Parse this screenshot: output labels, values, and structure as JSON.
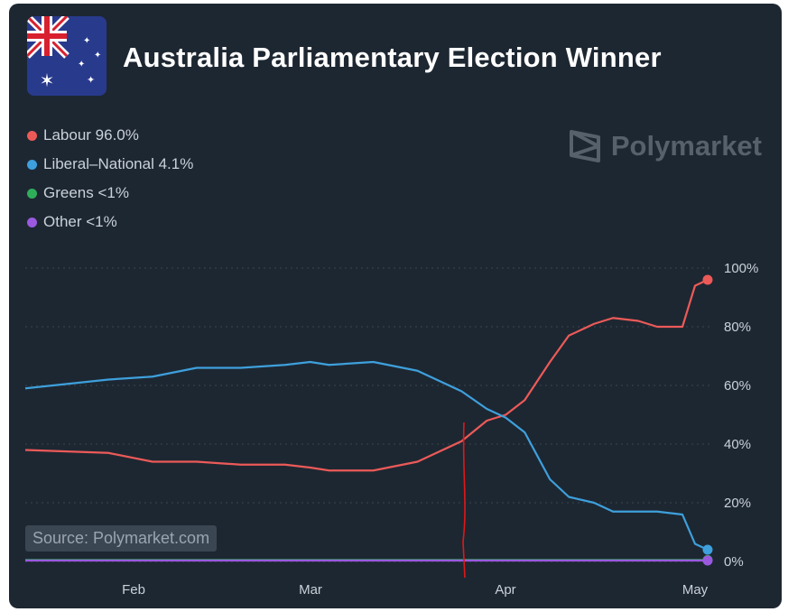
{
  "title": "Australia Parliamentary Election Winner",
  "brand": "Polymarket",
  "source": "Source: Polymarket.com",
  "legend": [
    {
      "label": "Labour 96.0%",
      "color": "#ec5a58"
    },
    {
      "label": "Liberal–National 4.1%",
      "color": "#3ea0dc"
    },
    {
      "label": "Greens <1%",
      "color": "#2fae5a"
    },
    {
      "label": "Other <1%",
      "color": "#9b59e0"
    }
  ],
  "chart_data": {
    "type": "line",
    "title": "Australia Parliamentary Election Winner",
    "x_ticks": [
      "Feb",
      "Mar",
      "Apr",
      "May"
    ],
    "y_ticks": [
      "100%",
      "80%",
      "60%",
      "40%",
      "20%",
      "0%"
    ],
    "ylim": [
      0,
      100
    ],
    "grid": true,
    "legend_position": "top-left",
    "x": [
      "Jan 21",
      "Jan 28",
      "Feb 4",
      "Feb 11",
      "Feb 18",
      "Feb 25",
      "Mar 1",
      "Mar 4",
      "Mar 11",
      "Mar 18",
      "Mar 25",
      "Mar 29",
      "Apr 1",
      "Apr 4",
      "Apr 8",
      "Apr 11",
      "Apr 15",
      "Apr 18",
      "Apr 22",
      "Apr 25",
      "Apr 29",
      "May 1",
      "May 3"
    ],
    "series": [
      {
        "name": "Labour",
        "color": "#ec5a58",
        "values": [
          38,
          37,
          34,
          34,
          33,
          33,
          32,
          31,
          31,
          34,
          41,
          48,
          50,
          55,
          68,
          77,
          81,
          83,
          82,
          80,
          80,
          94,
          96
        ]
      },
      {
        "name": "Liberal–National",
        "color": "#3ea0dc",
        "values": [
          59,
          62,
          63,
          66,
          66,
          67,
          68,
          67,
          68,
          65,
          58,
          52,
          49,
          44,
          28,
          22,
          20,
          17,
          17,
          17,
          16,
          6,
          4
        ]
      },
      {
        "name": "Greens",
        "color": "#2fae5a",
        "values": [
          0.5,
          0.5,
          0.5,
          0.5,
          0.5,
          0.5,
          0.5,
          0.5,
          0.5,
          0.5,
          0.5,
          0.5,
          0.5,
          0.5,
          0.5,
          0.5,
          0.5,
          0.5,
          0.5,
          0.5,
          0.5,
          0.5,
          0.5
        ]
      },
      {
        "name": "Other",
        "color": "#9b59e0",
        "values": [
          0.3,
          0.3,
          0.3,
          0.3,
          0.3,
          0.3,
          0.3,
          0.3,
          0.3,
          0.3,
          0.3,
          0.3,
          0.3,
          0.3,
          0.3,
          0.3,
          0.3,
          0.3,
          0.3,
          0.3,
          0.3,
          0.3,
          0.3
        ]
      }
    ]
  }
}
